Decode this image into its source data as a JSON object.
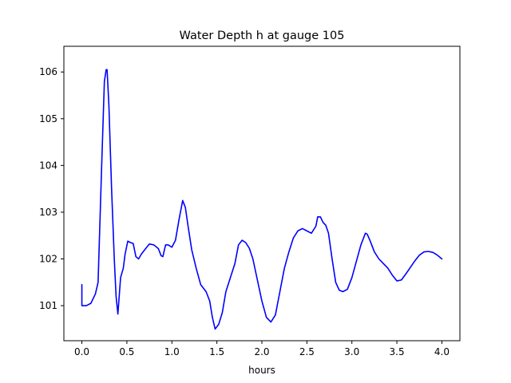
{
  "chart_data": {
    "type": "line",
    "title": "Water Depth h at gauge 105",
    "xlabel": "hours",
    "ylabel": "",
    "xlim": [
      -0.2,
      4.2
    ],
    "ylim": [
      100.25,
      106.55
    ],
    "xticks": [
      0.0,
      0.5,
      1.0,
      1.5,
      2.0,
      2.5,
      3.0,
      3.5,
      4.0
    ],
    "xtick_labels": [
      "0.0",
      "0.5",
      "1.0",
      "1.5",
      "2.0",
      "2.5",
      "3.0",
      "3.5",
      "4.0"
    ],
    "yticks": [
      101,
      102,
      103,
      104,
      105,
      106
    ],
    "ytick_labels": [
      "101",
      "102",
      "103",
      "104",
      "105",
      "106"
    ],
    "grid": false,
    "legend": "none",
    "series": [
      {
        "color": "#0000ff",
        "x": [
          0.0,
          0.0,
          0.05,
          0.1,
          0.15,
          0.18,
          0.22,
          0.25,
          0.27,
          0.28,
          0.3,
          0.33,
          0.36,
          0.38,
          0.4,
          0.43,
          0.46,
          0.48,
          0.51,
          0.54,
          0.57,
          0.6,
          0.63,
          0.66,
          0.7,
          0.75,
          0.8,
          0.85,
          0.88,
          0.9,
          0.93,
          0.96,
          1.0,
          1.04,
          1.08,
          1.12,
          1.15,
          1.18,
          1.22,
          1.27,
          1.32,
          1.38,
          1.42,
          1.45,
          1.48,
          1.52,
          1.56,
          1.6,
          1.65,
          1.7,
          1.74,
          1.78,
          1.82,
          1.86,
          1.9,
          1.95,
          2.0,
          2.05,
          2.1,
          2.15,
          2.2,
          2.25,
          2.3,
          2.35,
          2.4,
          2.45,
          2.5,
          2.55,
          2.6,
          2.62,
          2.65,
          2.68,
          2.71,
          2.74,
          2.78,
          2.82,
          2.86,
          2.9,
          2.95,
          3.0,
          3.05,
          3.1,
          3.15,
          3.17,
          3.2,
          3.25,
          3.3,
          3.35,
          3.4,
          3.45,
          3.5,
          3.55,
          3.6,
          3.65,
          3.7,
          3.75,
          3.8,
          3.85,
          3.9,
          3.95,
          4.0
        ],
        "y": [
          101.45,
          101.0,
          101.0,
          101.05,
          101.25,
          101.5,
          104.0,
          105.8,
          106.05,
          106.05,
          105.3,
          103.5,
          102.0,
          101.2,
          100.82,
          101.6,
          101.8,
          102.1,
          102.38,
          102.35,
          102.33,
          102.05,
          102.0,
          102.1,
          102.2,
          102.32,
          102.3,
          102.22,
          102.07,
          102.05,
          102.3,
          102.3,
          102.25,
          102.4,
          102.85,
          103.25,
          103.1,
          102.7,
          102.2,
          101.8,
          101.45,
          101.3,
          101.1,
          100.75,
          100.5,
          100.6,
          100.85,
          101.3,
          101.6,
          101.9,
          102.3,
          102.4,
          102.35,
          102.23,
          102.0,
          101.55,
          101.1,
          100.75,
          100.65,
          100.8,
          101.3,
          101.8,
          102.15,
          102.45,
          102.6,
          102.65,
          102.6,
          102.55,
          102.7,
          102.9,
          102.9,
          102.78,
          102.72,
          102.55,
          102.0,
          101.5,
          101.33,
          101.3,
          101.35,
          101.6,
          101.95,
          102.3,
          102.55,
          102.53,
          102.4,
          102.15,
          102.0,
          101.9,
          101.8,
          101.65,
          101.53,
          101.55,
          101.68,
          101.82,
          101.96,
          102.08,
          102.15,
          102.16,
          102.14,
          102.08,
          102.0
        ]
      }
    ]
  }
}
